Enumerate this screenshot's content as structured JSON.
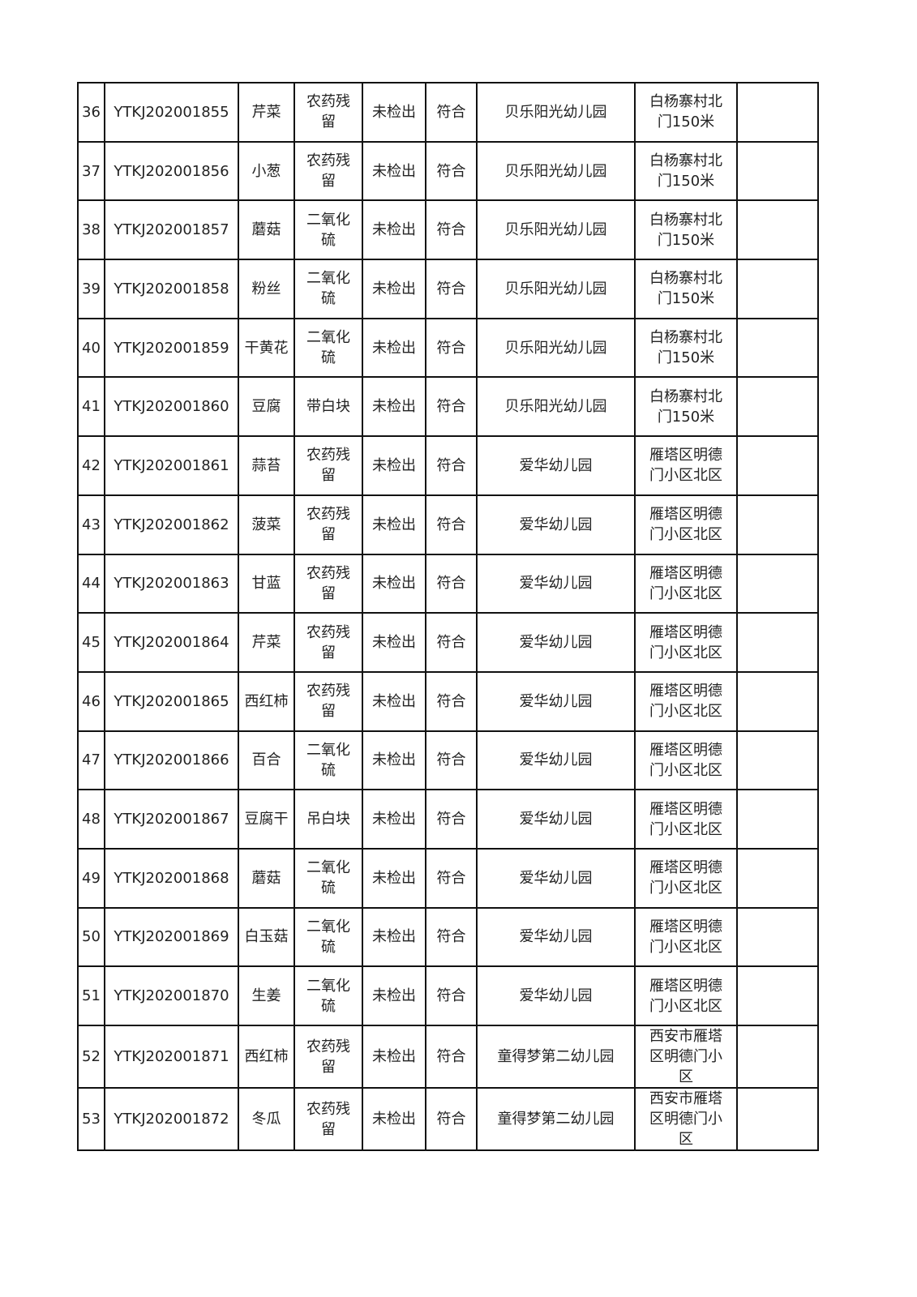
{
  "rows": [
    {
      "no": "36",
      "code": "YTKJ202001855",
      "sample": "芹菜",
      "item": "农药残\n留",
      "result": "未检出",
      "judgement": "符合",
      "unit": "贝乐阳光幼儿园",
      "address": "白杨寨村北\n门150米",
      "remark": ""
    },
    {
      "no": "37",
      "code": "YTKJ202001856",
      "sample": "小葱",
      "item": "农药残\n留",
      "result": "未检出",
      "judgement": "符合",
      "unit": "贝乐阳光幼儿园",
      "address": "白杨寨村北\n门150米",
      "remark": ""
    },
    {
      "no": "38",
      "code": "YTKJ202001857",
      "sample": "蘑菇",
      "item": "二氧化\n硫",
      "result": "未检出",
      "judgement": "符合",
      "unit": "贝乐阳光幼儿园",
      "address": "白杨寨村北\n门150米",
      "remark": ""
    },
    {
      "no": "39",
      "code": "YTKJ202001858",
      "sample": "粉丝",
      "item": "二氧化\n硫",
      "result": "未检出",
      "judgement": "符合",
      "unit": "贝乐阳光幼儿园",
      "address": "白杨寨村北\n门150米",
      "remark": ""
    },
    {
      "no": "40",
      "code": "YTKJ202001859",
      "sample": "干黄花",
      "item": "二氧化\n硫",
      "result": "未检出",
      "judgement": "符合",
      "unit": "贝乐阳光幼儿园",
      "address": "白杨寨村北\n门150米",
      "remark": ""
    },
    {
      "no": "41",
      "code": "YTKJ202001860",
      "sample": "豆腐",
      "item": "带白块",
      "result": "未检出",
      "judgement": "符合",
      "unit": "贝乐阳光幼儿园",
      "address": "白杨寨村北\n门150米",
      "remark": ""
    },
    {
      "no": "42",
      "code": "YTKJ202001861",
      "sample": "蒜苔",
      "item": "农药残\n留",
      "result": "未检出",
      "judgement": "符合",
      "unit": "爱华幼儿园",
      "address": "雁塔区明德\n门小区北区",
      "remark": ""
    },
    {
      "no": "43",
      "code": "YTKJ202001862",
      "sample": "菠菜",
      "item": "农药残\n留",
      "result": "未检出",
      "judgement": "符合",
      "unit": "爱华幼儿园",
      "address": "雁塔区明德\n门小区北区",
      "remark": ""
    },
    {
      "no": "44",
      "code": "YTKJ202001863",
      "sample": "甘蓝",
      "item": "农药残\n留",
      "result": "未检出",
      "judgement": "符合",
      "unit": "爱华幼儿园",
      "address": "雁塔区明德\n门小区北区",
      "remark": ""
    },
    {
      "no": "45",
      "code": "YTKJ202001864",
      "sample": "芹菜",
      "item": "农药残\n留",
      "result": "未检出",
      "judgement": "符合",
      "unit": "爱华幼儿园",
      "address": "雁塔区明德\n门小区北区",
      "remark": ""
    },
    {
      "no": "46",
      "code": "YTKJ202001865",
      "sample": "西红柿",
      "item": "农药残\n留",
      "result": "未检出",
      "judgement": "符合",
      "unit": "爱华幼儿园",
      "address": "雁塔区明德\n门小区北区",
      "remark": ""
    },
    {
      "no": "47",
      "code": "YTKJ202001866",
      "sample": "百合",
      "item": "二氧化\n硫",
      "result": "未检出",
      "judgement": "符合",
      "unit": "爱华幼儿园",
      "address": "雁塔区明德\n门小区北区",
      "remark": ""
    },
    {
      "no": "48",
      "code": "YTKJ202001867",
      "sample": "豆腐干",
      "item": "吊白块",
      "result": "未检出",
      "judgement": "符合",
      "unit": "爱华幼儿园",
      "address": "雁塔区明德\n门小区北区",
      "remark": ""
    },
    {
      "no": "49",
      "code": "YTKJ202001868",
      "sample": "蘑菇",
      "item": "二氧化\n硫",
      "result": "未检出",
      "judgement": "符合",
      "unit": "爱华幼儿园",
      "address": "雁塔区明德\n门小区北区",
      "remark": ""
    },
    {
      "no": "50",
      "code": "YTKJ202001869",
      "sample": "白玉菇",
      "item": "二氧化\n硫",
      "result": "未检出",
      "judgement": "符合",
      "unit": "爱华幼儿园",
      "address": "雁塔区明德\n门小区北区",
      "remark": ""
    },
    {
      "no": "51",
      "code": "YTKJ202001870",
      "sample": "生姜",
      "item": "二氧化\n硫",
      "result": "未检出",
      "judgement": "符合",
      "unit": "爱华幼儿园",
      "address": "雁塔区明德\n门小区北区",
      "remark": ""
    },
    {
      "no": "52",
      "code": "YTKJ202001871",
      "sample": "西红柿",
      "item": "农药残\n留",
      "result": "未检出",
      "judgement": "符合",
      "unit": "童得梦第二幼儿园",
      "address": "西安市雁塔\n区明德门小\n区",
      "remark": ""
    },
    {
      "no": "53",
      "code": "YTKJ202001872",
      "sample": "冬瓜",
      "item": "农药残\n留",
      "result": "未检出",
      "judgement": "符合",
      "unit": "童得梦第二幼儿园",
      "address": "西安市雁塔\n区明德门小\n区",
      "remark": ""
    }
  ]
}
